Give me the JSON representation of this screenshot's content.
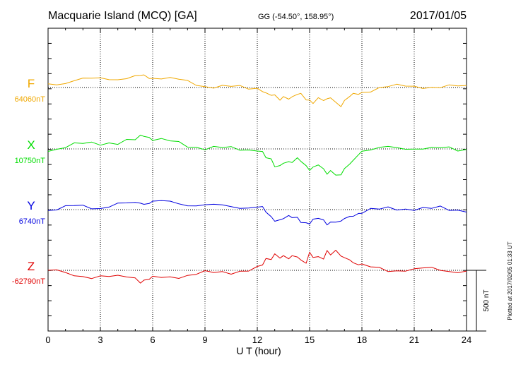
{
  "header": {
    "station": "Macquarie Island (MCQ)  [GA]",
    "coords": "GG (-54.50°, 158.95°)",
    "date": "2017/01/05"
  },
  "side_note": "Plotted at 2017/02/05 01:33 UT",
  "chart_data": {
    "type": "line",
    "title": "Macquarie Island (MCQ)  [GA]",
    "xlabel": "U T (hour)",
    "xlim": [
      0,
      24
    ],
    "xticks": [
      0,
      3,
      6,
      9,
      12,
      15,
      18,
      21,
      24
    ],
    "grid": true,
    "scale_bar_label": "500 nT",
    "scale_bar_nt": 500,
    "series": [
      {
        "name": "F",
        "baseline_label": "64060nT",
        "color": "#f0a800",
        "x": [
          0,
          0.5,
          1,
          1.5,
          2,
          2.5,
          3,
          3.5,
          4,
          4.5,
          5,
          5.3,
          5.5,
          5.8,
          6,
          6.5,
          7,
          7.5,
          8,
          8.5,
          9,
          9.5,
          10,
          10.5,
          11,
          11.5,
          12,
          12.3,
          12.5,
          12.8,
          13,
          13.3,
          13.5,
          13.8,
          14,
          14.3,
          14.5,
          14.8,
          15,
          15.2,
          15.5,
          15.8,
          16,
          16.2,
          16.5,
          16.8,
          17,
          17.3,
          17.5,
          17.8,
          18,
          18.5,
          19,
          19.5,
          20,
          20.5,
          21,
          21.5,
          22,
          22.5,
          23,
          23.5,
          24
        ],
        "y": [
          30,
          35,
          45,
          58,
          65,
          65,
          75,
          78,
          75,
          80,
          85,
          90,
          95,
          88,
          85,
          82,
          70,
          60,
          45,
          30,
          15,
          10,
          6,
          2,
          0,
          -2,
          0,
          -15,
          -55,
          -70,
          -80,
          -95,
          -70,
          -75,
          -85,
          -60,
          -70,
          -95,
          -100,
          -110,
          -90,
          -110,
          -115,
          -80,
          -120,
          -135,
          -110,
          -75,
          -70,
          -55,
          -40,
          -15,
          0,
          8,
          6,
          10,
          10,
          12,
          5,
          0,
          2,
          8,
          15
        ]
      },
      {
        "name": "X",
        "baseline_label": "10750nT",
        "color": "#00dd00",
        "x": [
          0,
          0.5,
          1,
          1.5,
          2,
          2.5,
          3,
          3.5,
          4,
          4.5,
          5,
          5.3,
          5.5,
          5.8,
          6,
          6.5,
          7,
          7.5,
          8,
          8.5,
          9,
          9.5,
          10,
          10.5,
          11,
          11.5,
          12,
          12.3,
          12.5,
          12.8,
          13,
          13.3,
          13.5,
          13.8,
          14,
          14.3,
          14.5,
          14.8,
          15,
          15.2,
          15.5,
          15.8,
          16,
          16.2,
          16.5,
          16.8,
          17,
          17.3,
          17.5,
          17.8,
          18,
          18.5,
          19,
          19.5,
          20,
          20.5,
          21,
          21.5,
          22,
          22.5,
          23,
          23.5,
          24
        ],
        "y": [
          0,
          2,
          20,
          30,
          40,
          45,
          50,
          55,
          50,
          60,
          70,
          100,
          120,
          100,
          85,
          70,
          60,
          45,
          30,
          20,
          10,
          8,
          5,
          2,
          0,
          -2,
          0,
          -30,
          -80,
          -100,
          -140,
          -130,
          -100,
          -110,
          -120,
          -90,
          -100,
          -130,
          -160,
          -150,
          -140,
          -180,
          -210,
          -170,
          -200,
          -210,
          -170,
          -140,
          -100,
          -40,
          -5,
          0,
          5,
          8,
          0,
          5,
          10,
          12,
          5,
          0,
          2,
          -10,
          5
        ]
      },
      {
        "name": "Y",
        "baseline_label": "6740nT",
        "color": "#0000e0",
        "x": [
          0,
          0.5,
          1,
          1.5,
          2,
          2.5,
          3,
          3.5,
          4,
          4.5,
          5,
          5.3,
          5.5,
          5.8,
          6,
          6.5,
          7,
          7.5,
          8,
          8.5,
          9,
          9.5,
          10,
          10.5,
          11,
          11.5,
          12,
          12.3,
          12.5,
          12.8,
          13,
          13.3,
          13.5,
          13.8,
          14,
          14.3,
          14.5,
          14.8,
          15,
          15.2,
          15.5,
          15.8,
          16,
          16.2,
          16.5,
          16.8,
          17,
          17.3,
          17.5,
          17.8,
          18,
          18.5,
          19,
          19.5,
          20,
          20.5,
          21,
          21.5,
          22,
          22.5,
          23,
          23.5,
          24
        ],
        "y": [
          0,
          5,
          15,
          25,
          28,
          22,
          18,
          30,
          40,
          45,
          50,
          65,
          55,
          60,
          60,
          62,
          60,
          55,
          45,
          40,
          35,
          30,
          30,
          28,
          25,
          22,
          20,
          10,
          -30,
          -60,
          -80,
          -75,
          -70,
          -65,
          -75,
          -70,
          -90,
          -100,
          -110,
          -95,
          -80,
          -95,
          -110,
          -95,
          -90,
          -110,
          -80,
          -70,
          -40,
          -25,
          -15,
          -5,
          -2,
          5,
          10,
          10,
          12,
          5,
          5,
          10,
          5,
          0,
          0
        ]
      },
      {
        "name": "Z",
        "baseline_label": "-62790nT",
        "color": "#e00000",
        "x": [
          0,
          0.5,
          1,
          1.5,
          2,
          2.5,
          3,
          3.5,
          4,
          4.5,
          5,
          5.3,
          5.5,
          5.8,
          6,
          6.5,
          7,
          7.5,
          8,
          8.5,
          9,
          9.5,
          10,
          10.5,
          11,
          11.5,
          12,
          12.3,
          12.5,
          12.8,
          13,
          13.3,
          13.5,
          13.8,
          14,
          14.3,
          14.5,
          14.8,
          15,
          15.2,
          15.5,
          15.8,
          16,
          16.2,
          16.5,
          16.8,
          17,
          17.3,
          17.5,
          17.8,
          18,
          18.5,
          19,
          19.5,
          20,
          20.5,
          21,
          21.5,
          22,
          22.5,
          23,
          23.5,
          24
        ],
        "y": [
          0,
          -5,
          -35,
          -45,
          -45,
          -50,
          -45,
          -55,
          -60,
          -55,
          -60,
          -85,
          -80,
          -75,
          -70,
          -60,
          -55,
          -45,
          -40,
          -30,
          -25,
          -20,
          -15,
          -10,
          -5,
          0,
          10,
          40,
          90,
          110,
          140,
          110,
          100,
          90,
          110,
          130,
          90,
          70,
          130,
          100,
          100,
          110,
          170,
          140,
          150,
          110,
          90,
          100,
          70,
          60,
          40,
          20,
          10,
          0,
          5,
          8,
          5,
          10,
          10,
          5,
          0,
          -5,
          -10
        ]
      }
    ]
  }
}
